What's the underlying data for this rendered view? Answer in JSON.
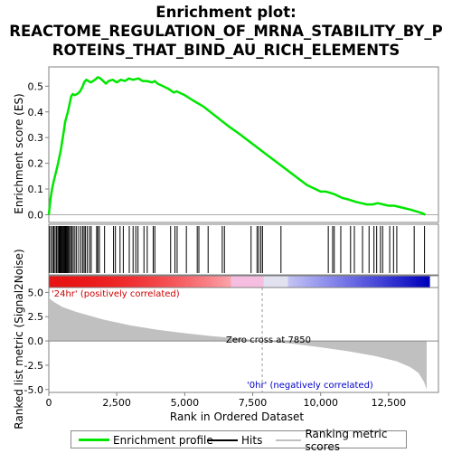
{
  "title_line1": "Enrichment plot:",
  "title_line2": "REACTOME_REGULATION_OF_MRNA_STABILITY_BY_P",
  "title_line3": "ROTEINS_THAT_BIND_AU_RICH_ELEMENTS",
  "colors": {
    "enrichment": "#00e600",
    "hits": "#000000",
    "metric_fill": "#c0c0c0",
    "zero_line": "#aaaaaa",
    "positive_label": "#cc0000",
    "negative_label": "#0000cc"
  },
  "chart_data": [
    {
      "type": "line",
      "panel": "enrichment",
      "ylabel": "Enrichment score (ES)",
      "xlim": [
        0,
        13900
      ],
      "ylim": [
        -0.03,
        0.575
      ],
      "yticks": [
        0.0,
        0.1,
        0.2,
        0.3,
        0.4,
        0.5
      ],
      "ytick_labels": [
        "0.0",
        "0.1",
        "0.2",
        "0.3",
        "0.4",
        "0.5"
      ],
      "series": [
        {
          "name": "Enrichment profile",
          "x": [
            0,
            60,
            120,
            180,
            250,
            320,
            380,
            440,
            500,
            560,
            600,
            650,
            700,
            760,
            820,
            880,
            950,
            1050,
            1150,
            1250,
            1300,
            1380,
            1450,
            1550,
            1700,
            1800,
            1900,
            2000,
            2100,
            2200,
            2350,
            2500,
            2650,
            2800,
            2950,
            3100,
            3300,
            3450,
            3600,
            3800,
            3900,
            4000,
            4200,
            4400,
            4600,
            4700,
            4800,
            5000,
            5300,
            5700,
            6000,
            6300,
            6600,
            7000,
            7500,
            8000,
            8500,
            9000,
            9500,
            10000,
            10200,
            10500,
            10800,
            11000,
            11300,
            11500,
            11700,
            11900,
            12100,
            12300,
            12500,
            12700,
            12900,
            13100,
            13300,
            13450,
            13600,
            13750,
            13850
          ],
          "values": [
            0.0,
            0.06,
            0.1,
            0.13,
            0.16,
            0.19,
            0.22,
            0.25,
            0.29,
            0.33,
            0.36,
            0.38,
            0.4,
            0.43,
            0.46,
            0.47,
            0.465,
            0.47,
            0.48,
            0.5,
            0.515,
            0.525,
            0.52,
            0.515,
            0.525,
            0.535,
            0.53,
            0.52,
            0.51,
            0.52,
            0.525,
            0.515,
            0.525,
            0.52,
            0.53,
            0.525,
            0.53,
            0.52,
            0.52,
            0.515,
            0.52,
            0.51,
            0.5,
            0.49,
            0.475,
            0.48,
            0.475,
            0.465,
            0.445,
            0.42,
            0.395,
            0.37,
            0.345,
            0.315,
            0.275,
            0.235,
            0.195,
            0.155,
            0.115,
            0.09,
            0.09,
            0.08,
            0.065,
            0.06,
            0.05,
            0.045,
            0.04,
            0.04,
            0.045,
            0.04,
            0.035,
            0.035,
            0.03,
            0.025,
            0.02,
            0.015,
            0.01,
            0.005,
            0.0
          ]
        }
      ]
    },
    {
      "type": "scatter",
      "panel": "hits",
      "legend_name": "Hits",
      "xlim": [
        0,
        13900
      ],
      "positions": [
        20,
        80,
        140,
        180,
        230,
        280,
        330,
        370,
        400,
        430,
        460,
        490,
        510,
        540,
        570,
        600,
        630,
        660,
        690,
        720,
        760,
        800,
        850,
        900,
        960,
        1020,
        1100,
        1180,
        1250,
        1300,
        1350,
        1420,
        1500,
        1560,
        1760,
        1800,
        1860,
        2050,
        2380,
        2450,
        2620,
        2740,
        2960,
        3100,
        3200,
        3280,
        3500,
        3620,
        3840,
        3900,
        4480,
        4640,
        4720,
        5060,
        5460,
        5520,
        5860,
        6380,
        6460,
        7440,
        7660,
        7720,
        7800,
        7860,
        8540,
        10280,
        10440,
        10500,
        10740,
        11100,
        11240,
        11540,
        11780,
        11960,
        12060,
        12200,
        12280,
        12540,
        12680,
        12800,
        13440,
        13820
      ]
    },
    {
      "type": "area",
      "panel": "ranking",
      "legend_name": "Ranking metric scores",
      "ylabel": "Ranked list metric (Signal2Noise)",
      "xlabel": "Rank in Ordered Dataset",
      "xlim": [
        0,
        13900
      ],
      "ylim": [
        -5.3,
        5.5
      ],
      "yticks": [
        5.0,
        2.5,
        0.0,
        -2.5,
        -5.0
      ],
      "ytick_labels": [
        "5.0",
        "2.5",
        "0.0",
        "-2.5",
        "-5.0"
      ],
      "xticks": [
        0,
        2500,
        5000,
        7500,
        10000,
        12500
      ],
      "xtick_labels": [
        "0",
        "2,500",
        "5,000",
        "7,500",
        "10,000",
        "12,500"
      ],
      "x": [
        0,
        50,
        200,
        500,
        1000,
        2000,
        3000,
        4000,
        5000,
        6000,
        7000,
        7850,
        9000,
        10000,
        11000,
        12000,
        12800,
        13300,
        13600,
        13800,
        13900
      ],
      "values": [
        4.6,
        4.3,
        4.0,
        3.5,
        3.0,
        2.2,
        1.6,
        1.15,
        0.8,
        0.5,
        0.25,
        0.0,
        -0.3,
        -0.65,
        -1.05,
        -1.55,
        -2.1,
        -2.7,
        -3.3,
        -4.2,
        -5.0
      ],
      "zero_cross_label": "Zero cross at 7850",
      "zero_cross": 7850,
      "positive_label": "'24hr' (positively correlated)",
      "negative_label": "'0hr' (negatively correlated)"
    }
  ],
  "legend": {
    "enrichment_label": "Enrichment profile",
    "hits_label": "Hits",
    "ranking_label": "Ranking metric scores"
  }
}
